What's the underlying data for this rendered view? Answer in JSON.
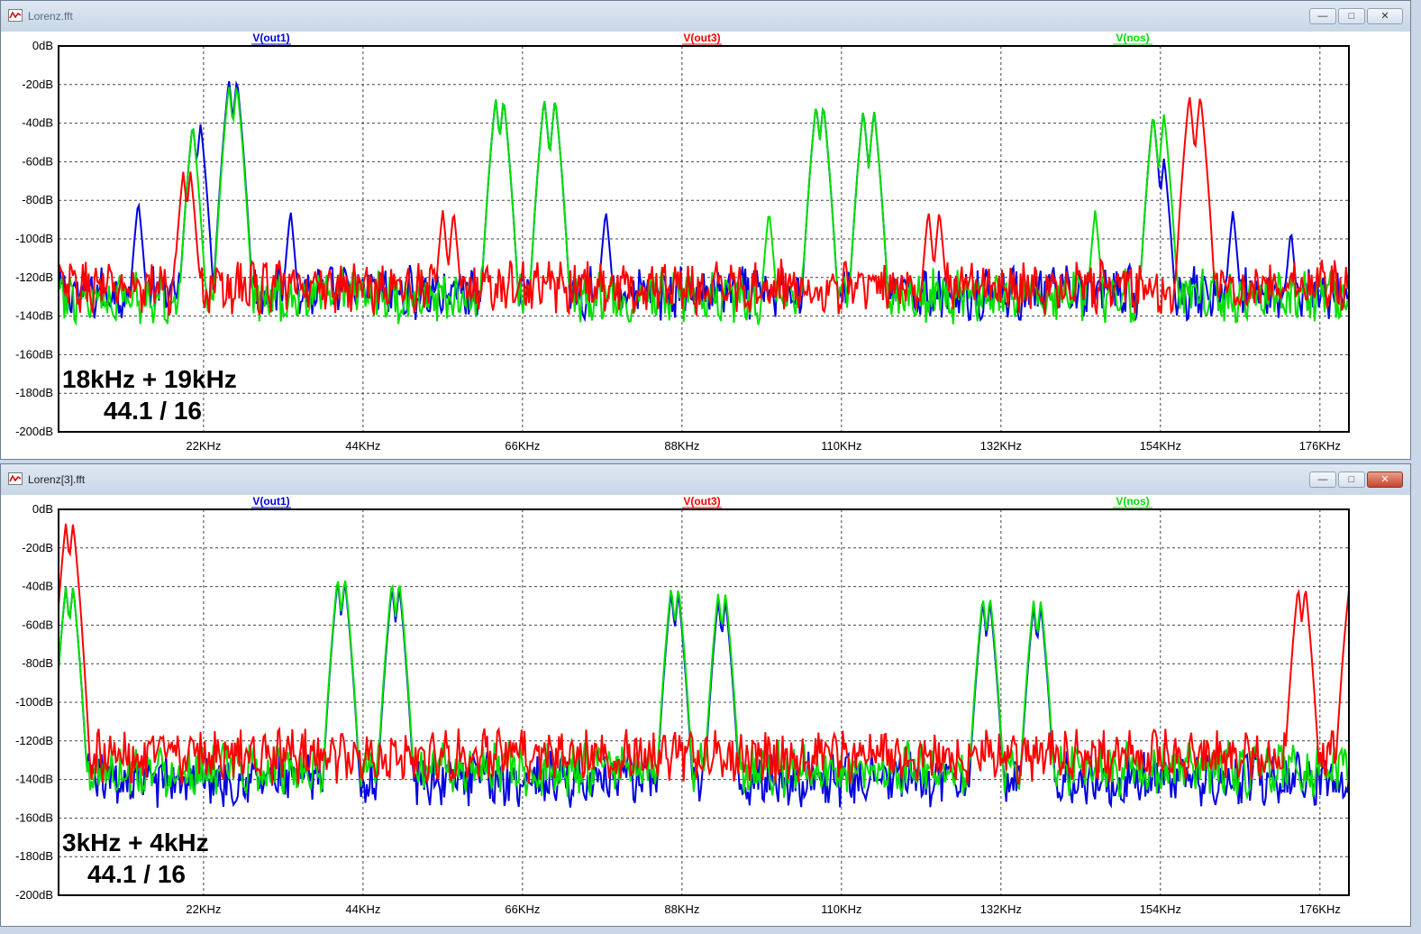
{
  "windows": [
    {
      "title": "Lorenz.fft",
      "active": false,
      "buttons": [
        "—",
        "□",
        "✕"
      ],
      "annotation": [
        "18kHz + 19kHz",
        "44.1 / 16"
      ],
      "chart_data": {
        "type": "line",
        "xlabel": "",
        "ylabel": "",
        "xlim": [
          2,
          180
        ],
        "ylim": [
          -200,
          0
        ],
        "grid": true,
        "x_ticks": [
          "22KHz",
          "44KHz",
          "66KHz",
          "88KHz",
          "110KHz",
          "132KHz",
          "154KHz",
          "176KHz"
        ],
        "x_tick_values": [
          22,
          44,
          66,
          88,
          110,
          132,
          154,
          176
        ],
        "y_ticks": [
          "0dB",
          "-20dB",
          "-40dB",
          "-60dB",
          "-80dB",
          "-100dB",
          "-120dB",
          "-140dB",
          "-160dB",
          "-180dB",
          "-200dB"
        ],
        "y_tick_values": [
          0,
          -20,
          -40,
          -60,
          -80,
          -100,
          -120,
          -140,
          -160,
          -180,
          -200
        ],
        "series": [
          {
            "name": "V(out1)",
            "color": "#0000e0",
            "floor": -128,
            "peaks": [
              [
                20.5,
                -40
              ],
              [
                21.6,
                -40
              ],
              [
                25.5,
                -17
              ],
              [
                26.6,
                -17
              ],
              [
                13,
                -80
              ],
              [
                34,
                -85
              ],
              [
                62.3,
                -27
              ],
              [
                63.4,
                -27
              ],
              [
                69,
                -27
              ],
              [
                70.5,
                -27
              ],
              [
                77.5,
                -85
              ],
              [
                106.5,
                -30
              ],
              [
                107.5,
                -30
              ],
              [
                113,
                -33
              ],
              [
                114.5,
                -33
              ],
              [
                153,
                -35
              ],
              [
                154.5,
                -58
              ],
              [
                164,
                -85
              ],
              [
                172,
                -95
              ]
            ]
          },
          {
            "name": "V(out3)",
            "color": "#ff0000",
            "floor": -125,
            "peaks": [
              [
                19.2,
                -65
              ],
              [
                20.2,
                -65
              ],
              [
                55,
                -85
              ],
              [
                56.5,
                -85
              ],
              [
                122,
                -85
              ],
              [
                123.5,
                -85
              ],
              [
                158,
                -25
              ],
              [
                159.5,
                -25
              ]
            ]
          },
          {
            "name": "V(nos)",
            "color": "#00e000",
            "floor": -130,
            "peaks": [
              [
                20.5,
                -40
              ],
              [
                25.5,
                -20
              ],
              [
                26.6,
                -20
              ],
              [
                62.3,
                -27
              ],
              [
                63.4,
                -27
              ],
              [
                69,
                -27
              ],
              [
                70.5,
                -27
              ],
              [
                100,
                -85
              ],
              [
                106.5,
                -30
              ],
              [
                107.5,
                -30
              ],
              [
                113,
                -33
              ],
              [
                114.5,
                -33
              ],
              [
                145,
                -85
              ],
              [
                153,
                -35
              ],
              [
                154.5,
                -35
              ]
            ]
          }
        ]
      }
    },
    {
      "title": "Lorenz[3].fft",
      "active": true,
      "buttons": [
        "—",
        "□",
        "✕"
      ],
      "annotation": [
        "3kHz + 4kHz",
        "44.1 / 16"
      ],
      "chart_data": {
        "type": "line",
        "xlabel": "",
        "ylabel": "",
        "xlim": [
          2,
          180
        ],
        "ylim": [
          -200,
          0
        ],
        "grid": true,
        "x_ticks": [
          "22KHz",
          "44KHz",
          "66KHz",
          "88KHz",
          "110KHz",
          "132KHz",
          "154KHz",
          "176KHz"
        ],
        "x_tick_values": [
          22,
          44,
          66,
          88,
          110,
          132,
          154,
          176
        ],
        "y_ticks": [
          "0dB",
          "-20dB",
          "-40dB",
          "-60dB",
          "-80dB",
          "-100dB",
          "-120dB",
          "-140dB",
          "-160dB",
          "-180dB",
          "-200dB"
        ],
        "y_tick_values": [
          0,
          -20,
          -40,
          -60,
          -80,
          -100,
          -120,
          -140,
          -160,
          -180,
          -200
        ],
        "series": [
          {
            "name": "V(out1)",
            "color": "#0000e0",
            "floor": -140,
            "peaks": [
              [
                3,
                -40
              ],
              [
                4,
                -40
              ],
              [
                40.5,
                -37
              ],
              [
                41.5,
                -37
              ],
              [
                48,
                -40
              ],
              [
                49,
                -40
              ],
              [
                86.5,
                -43
              ],
              [
                87.5,
                -43
              ],
              [
                93,
                -47
              ],
              [
                94,
                -47
              ],
              [
                129.5,
                -48
              ],
              [
                130.5,
                -48
              ],
              [
                136.5,
                -50
              ],
              [
                137.5,
                -50
              ],
              [
                167,
                -125
              ],
              [
                173,
                -125
              ]
            ]
          },
          {
            "name": "V(out3)",
            "color": "#ff0000",
            "floor": -128,
            "peaks": [
              [
                3,
                -7
              ],
              [
                4,
                -7
              ],
              [
                173,
                -40
              ],
              [
                174,
                -40
              ],
              [
                180,
                -42
              ]
            ]
          },
          {
            "name": "V(nos)",
            "color": "#00e000",
            "floor": -135,
            "peaks": [
              [
                3,
                -40
              ],
              [
                4,
                -40
              ],
              [
                40.5,
                -35
              ],
              [
                41.5,
                -35
              ],
              [
                48,
                -37
              ],
              [
                49,
                -37
              ],
              [
                86.5,
                -40
              ],
              [
                87.5,
                -40
              ],
              [
                93,
                -43
              ],
              [
                94,
                -43
              ],
              [
                129.5,
                -45
              ],
              [
                130.5,
                -45
              ],
              [
                136.5,
                -47
              ],
              [
                137.5,
                -47
              ]
            ]
          }
        ]
      }
    }
  ]
}
